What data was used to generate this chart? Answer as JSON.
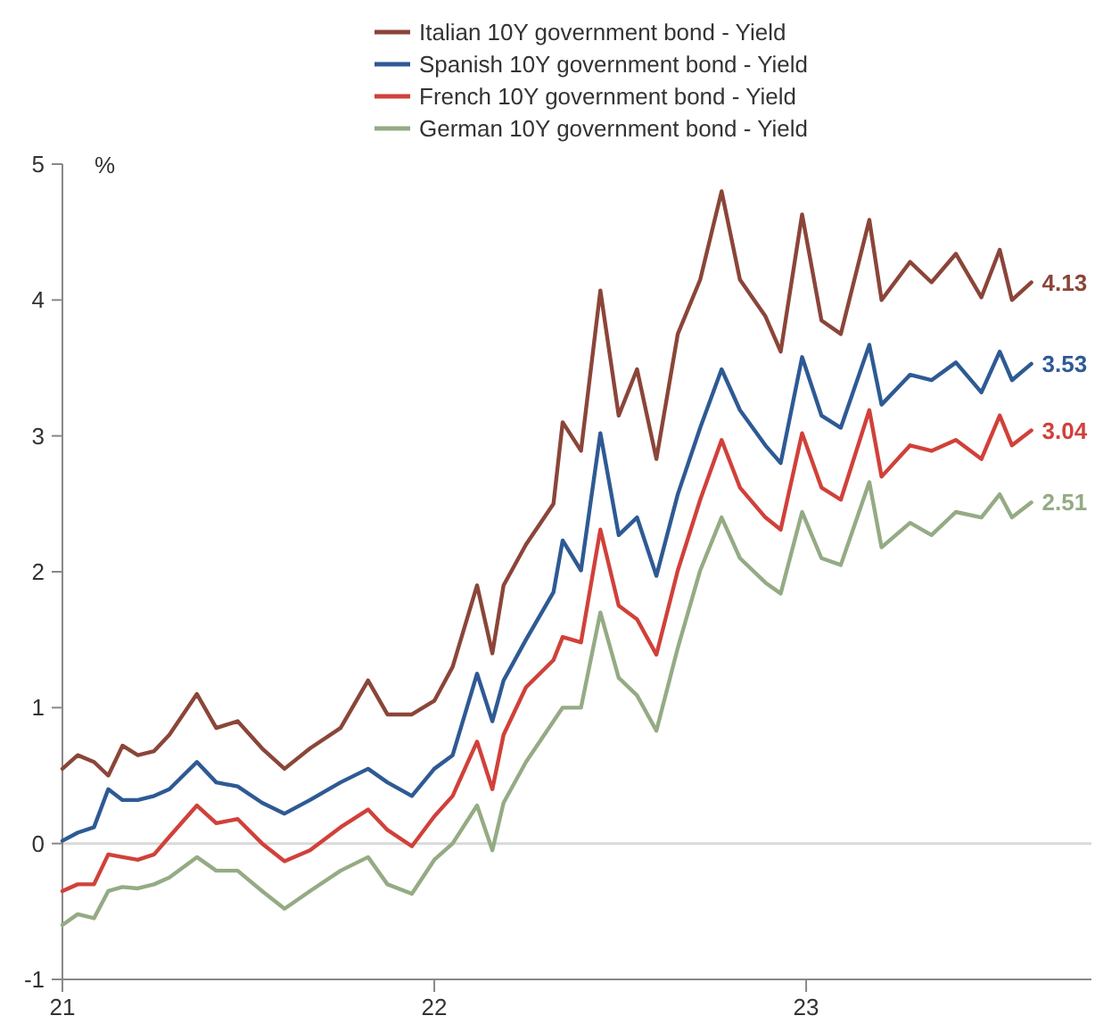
{
  "chart_data": {
    "type": "line",
    "ylabel": "%",
    "x": [
      "2021-01-01",
      "2021-01-16",
      "2021-02-01",
      "2021-02-15",
      "2021-03-01",
      "2021-03-16",
      "2021-04-01",
      "2021-04-16",
      "2021-05-13",
      "2021-06-01",
      "2021-06-22",
      "2021-07-16",
      "2021-08-07",
      "2021-09-01",
      "2021-10-01",
      "2021-10-28",
      "2021-11-16",
      "2021-12-10",
      "2022-01-01",
      "2022-01-19",
      "2022-02-12",
      "2022-02-27",
      "2022-03-10",
      "2022-04-01",
      "2022-04-28",
      "2022-05-07",
      "2022-05-25",
      "2022-06-13",
      "2022-07-01",
      "2022-07-19",
      "2022-08-07",
      "2022-08-28",
      "2022-09-19",
      "2022-10-10",
      "2022-10-28",
      "2022-11-22",
      "2022-12-07",
      "2022-12-28",
      "2023-01-16",
      "2023-02-04",
      "2023-03-04",
      "2023-03-16",
      "2023-04-13",
      "2023-05-04",
      "2023-05-28",
      "2023-06-22",
      "2023-07-10",
      "2023-07-22",
      "2023-08-10"
    ],
    "series": [
      {
        "name": "Italian 10Y government bond - Yield",
        "color": "#8b4539",
        "values": [
          0.55,
          0.65,
          0.6,
          0.5,
          0.72,
          0.65,
          0.68,
          0.8,
          1.1,
          0.85,
          0.9,
          0.7,
          0.55,
          0.7,
          0.85,
          1.2,
          0.95,
          0.95,
          1.05,
          1.3,
          1.9,
          1.4,
          1.9,
          2.2,
          2.5,
          3.1,
          2.89,
          4.07,
          3.15,
          3.49,
          2.83,
          3.75,
          4.15,
          4.8,
          4.15,
          3.88,
          3.62,
          4.63,
          3.85,
          3.75,
          4.59,
          4.0,
          4.28,
          4.13,
          4.34,
          4.02,
          4.37,
          4.0,
          4.13
        ],
        "value_labels": [
          null,
          null,
          null,
          null,
          null,
          null,
          null,
          null,
          null,
          null,
          null,
          null,
          null,
          null,
          null,
          null,
          null,
          null,
          null,
          null,
          null,
          null,
          null,
          null,
          null,
          null,
          null,
          null,
          null,
          null,
          null,
          null,
          null,
          null,
          null,
          null,
          null,
          null,
          null,
          null,
          null,
          null,
          null,
          null,
          null,
          null,
          null,
          null,
          "4.13"
        ]
      },
      {
        "name": "Spanish 10Y government bond - Yield",
        "color": "#2e5a94",
        "values": [
          0.02,
          0.08,
          0.12,
          0.4,
          0.32,
          0.32,
          0.35,
          0.4,
          0.6,
          0.45,
          0.42,
          0.3,
          0.22,
          0.32,
          0.45,
          0.55,
          0.45,
          0.35,
          0.55,
          0.65,
          1.25,
          0.9,
          1.2,
          1.5,
          1.85,
          2.23,
          2.01,
          3.02,
          2.27,
          2.4,
          1.97,
          2.57,
          3.06,
          3.49,
          3.19,
          2.93,
          2.8,
          3.58,
          3.15,
          3.06,
          3.67,
          3.23,
          3.45,
          3.41,
          3.54,
          3.32,
          3.62,
          3.41,
          3.53
        ],
        "value_labels": [
          null,
          null,
          null,
          null,
          null,
          null,
          null,
          null,
          null,
          null,
          null,
          null,
          null,
          null,
          null,
          null,
          null,
          null,
          null,
          null,
          null,
          null,
          null,
          null,
          null,
          null,
          null,
          null,
          null,
          null,
          null,
          null,
          null,
          null,
          null,
          null,
          null,
          null,
          null,
          null,
          null,
          null,
          null,
          null,
          null,
          null,
          null,
          null,
          "3.53"
        ]
      },
      {
        "name": "French 10Y government bond - Yield",
        "color": "#d0413a",
        "values": [
          -0.35,
          -0.3,
          -0.3,
          -0.08,
          -0.1,
          -0.12,
          -0.08,
          0.05,
          0.28,
          0.15,
          0.18,
          0.0,
          -0.13,
          -0.05,
          0.12,
          0.25,
          0.1,
          -0.02,
          0.2,
          0.35,
          0.75,
          0.4,
          0.8,
          1.15,
          1.35,
          1.52,
          1.48,
          2.31,
          1.75,
          1.65,
          1.39,
          2.01,
          2.53,
          2.97,
          2.62,
          2.4,
          2.31,
          3.02,
          2.62,
          2.53,
          3.19,
          2.7,
          2.93,
          2.89,
          2.97,
          2.83,
          3.15,
          2.93,
          3.04
        ],
        "value_labels": [
          null,
          null,
          null,
          null,
          null,
          null,
          null,
          null,
          null,
          null,
          null,
          null,
          null,
          null,
          null,
          null,
          null,
          null,
          null,
          null,
          null,
          null,
          null,
          null,
          null,
          null,
          null,
          null,
          null,
          null,
          null,
          null,
          null,
          null,
          null,
          null,
          null,
          null,
          null,
          null,
          null,
          null,
          null,
          null,
          null,
          null,
          null,
          null,
          "3.04"
        ]
      },
      {
        "name": "German 10Y government bond - Yield",
        "color": "#94ab84",
        "values": [
          -0.6,
          -0.52,
          -0.55,
          -0.35,
          -0.32,
          -0.33,
          -0.3,
          -0.25,
          -0.1,
          -0.2,
          -0.2,
          -0.35,
          -0.48,
          -0.35,
          -0.2,
          -0.1,
          -0.3,
          -0.37,
          -0.12,
          0.0,
          0.28,
          -0.05,
          0.3,
          0.6,
          0.9,
          1.0,
          1.0,
          1.7,
          1.22,
          1.09,
          0.83,
          1.44,
          2.01,
          2.4,
          2.1,
          1.92,
          1.84,
          2.44,
          2.1,
          2.05,
          2.66,
          2.18,
          2.36,
          2.27,
          2.44,
          2.4,
          2.57,
          2.4,
          2.51
        ],
        "value_labels": [
          null,
          null,
          null,
          null,
          null,
          null,
          null,
          null,
          null,
          null,
          null,
          null,
          null,
          null,
          null,
          null,
          null,
          null,
          null,
          null,
          null,
          null,
          null,
          null,
          null,
          null,
          null,
          null,
          null,
          null,
          null,
          null,
          null,
          null,
          null,
          null,
          null,
          null,
          null,
          null,
          null,
          null,
          null,
          null,
          null,
          null,
          null,
          null,
          "2.51"
        ]
      }
    ],
    "xlim": [
      "2021-01-01",
      "2023-10-08"
    ],
    "xticks": [
      {
        "value": "2021-01-01",
        "label": "21"
      },
      {
        "value": "2022-01-01",
        "label": "22"
      },
      {
        "value": "2023-01-01",
        "label": "23"
      }
    ],
    "ylim": [
      -1,
      5
    ],
    "yticks": [
      -1,
      0,
      1,
      2,
      3,
      4,
      5
    ],
    "ref_lines": [
      {
        "axis": "y",
        "value": 0,
        "color": "#d9d9d9"
      }
    ],
    "legend": "top",
    "grid": false,
    "line_style": "solid",
    "marker": "none"
  }
}
